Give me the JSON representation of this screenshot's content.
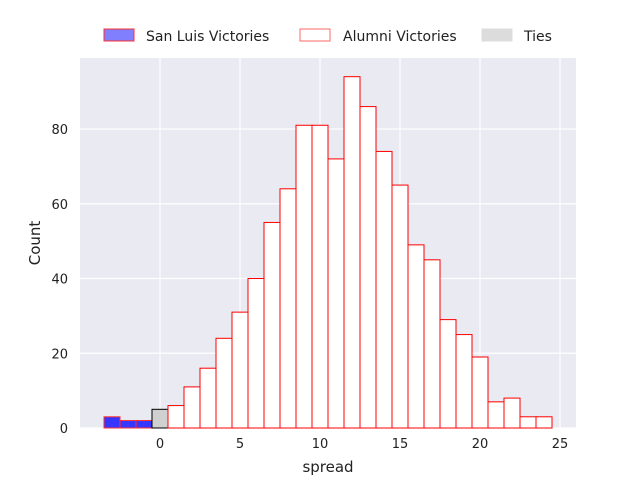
{
  "chart_data": {
    "type": "histogram",
    "xlabel": "spread",
    "ylabel": "Count",
    "xlim": [
      -5,
      26
    ],
    "ylim": [
      0,
      99
    ],
    "xticks": [
      0,
      5,
      10,
      15,
      20,
      25
    ],
    "yticks": [
      0,
      20,
      40,
      60,
      80
    ],
    "grid": true,
    "legend": {
      "placement": "top-center, outside plot",
      "entries": [
        {
          "label": "San Luis Victories",
          "swatch": "san_luis"
        },
        {
          "label": "Alumni Victories",
          "swatch": "alumni"
        },
        {
          "label": "Ties",
          "swatch": "ties"
        }
      ]
    },
    "bin_width": 1,
    "series": [
      {
        "key": "san_luis",
        "name": "San Luis Victories",
        "fill": "#3636ff",
        "stroke": "#ff3030",
        "bins": [
          {
            "x0": -3.5,
            "count": 3
          },
          {
            "x0": -2.5,
            "count": 2
          },
          {
            "x0": -1.5,
            "count": 2
          }
        ]
      },
      {
        "key": "ties",
        "name": "Ties",
        "fill": "#d0d0d0",
        "stroke": "#000000",
        "bins": [
          {
            "x0": -0.5,
            "count": 5
          }
        ]
      },
      {
        "key": "alumni",
        "name": "Alumni Victories",
        "fill": "#ffffff",
        "stroke": "#ff0000",
        "bins": [
          {
            "x0": 0.5,
            "count": 6
          },
          {
            "x0": 1.5,
            "count": 11
          },
          {
            "x0": 2.5,
            "count": 16
          },
          {
            "x0": 3.5,
            "count": 24
          },
          {
            "x0": 4.5,
            "count": 31
          },
          {
            "x0": 5.5,
            "count": 40
          },
          {
            "x0": 6.5,
            "count": 55
          },
          {
            "x0": 7.5,
            "count": 64
          },
          {
            "x0": 8.5,
            "count": 81
          },
          {
            "x0": 9.5,
            "count": 81
          },
          {
            "x0": 10.5,
            "count": 72
          },
          {
            "x0": 11.5,
            "count": 94
          },
          {
            "x0": 12.5,
            "count": 86
          },
          {
            "x0": 13.5,
            "count": 74
          },
          {
            "x0": 14.5,
            "count": 65
          },
          {
            "x0": 15.5,
            "count": 49
          },
          {
            "x0": 16.5,
            "count": 45
          },
          {
            "x0": 17.5,
            "count": 29
          },
          {
            "x0": 18.5,
            "count": 25
          },
          {
            "x0": 19.5,
            "count": 19
          },
          {
            "x0": 20.5,
            "count": 7
          },
          {
            "x0": 21.5,
            "count": 8
          },
          {
            "x0": 22.5,
            "count": 3
          },
          {
            "x0": 23.5,
            "count": 3
          }
        ]
      }
    ]
  }
}
